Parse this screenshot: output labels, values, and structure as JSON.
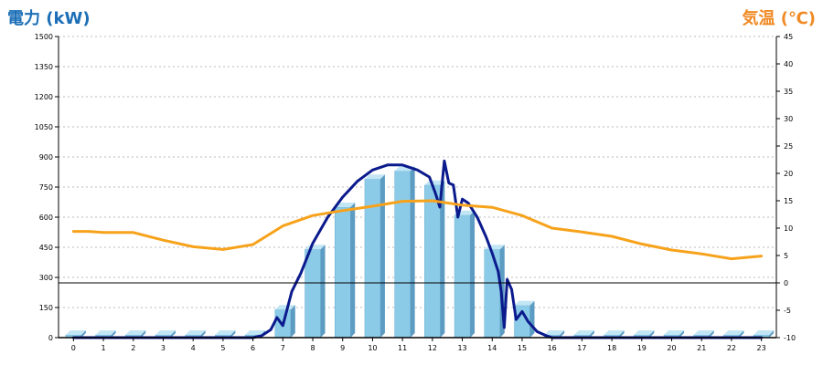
{
  "chart_data": {
    "type": "bar+line",
    "left_axis_label": "電力 (kW)",
    "right_axis_label": "気温 (℃)",
    "x_categories": [
      "0",
      "1",
      "2",
      "3",
      "4",
      "5",
      "6",
      "7",
      "8",
      "9",
      "10",
      "11",
      "12",
      "13",
      "14",
      "15",
      "16",
      "17",
      "18",
      "19",
      "20",
      "21",
      "22",
      "23"
    ],
    "left_ticks": [
      "0",
      "150",
      "300",
      "450",
      "600",
      "750",
      "900",
      "1050",
      "1200",
      "1350",
      "1500"
    ],
    "right_ticks": [
      "-10",
      "-5",
      "0",
      "5",
      "10",
      "15",
      "20",
      "25",
      "30",
      "35",
      "40",
      "45"
    ],
    "left_ylim": [
      0,
      1500
    ],
    "right_ylim": [
      -10,
      45
    ],
    "grid": "horizontal dashed",
    "series": [
      {
        "kind": "bar",
        "axis": "left",
        "color": "#8ccbe8",
        "x": [
          0,
          1,
          2,
          3,
          4,
          5,
          6,
          7,
          8,
          9,
          10,
          11,
          12,
          13,
          14,
          15,
          16,
          17,
          18,
          19,
          20,
          21,
          22,
          23
        ],
        "values": [
          0,
          0,
          0,
          0,
          0,
          0,
          0,
          140,
          440,
          650,
          790,
          830,
          760,
          610,
          440,
          160,
          0,
          0,
          0,
          0,
          0,
          0,
          0,
          0
        ]
      },
      {
        "kind": "line",
        "axis": "left",
        "color": "#0b1a8c",
        "x": [
          0,
          1,
          2,
          3,
          4,
          5,
          6,
          6.3,
          6.6,
          6.8,
          7,
          7.3,
          7.6,
          8,
          8.5,
          9,
          9.5,
          10,
          10.5,
          11,
          11.5,
          11.9,
          12.1,
          12.25,
          12.4,
          12.55,
          12.7,
          12.85,
          13,
          13.2,
          13.5,
          13.8,
          14,
          14.2,
          14.3,
          14.4,
          14.5,
          14.65,
          14.8,
          15,
          15.2,
          15.5,
          15.8,
          16,
          17,
          18,
          19,
          20,
          21,
          22,
          23
        ],
        "values": [
          0,
          0,
          0,
          0,
          0,
          0,
          0,
          10,
          40,
          100,
          60,
          230,
          320,
          470,
          600,
          700,
          780,
          835,
          860,
          860,
          835,
          800,
          720,
          650,
          880,
          770,
          760,
          600,
          690,
          670,
          600,
          500,
          420,
          330,
          230,
          50,
          290,
          240,
          90,
          130,
          80,
          30,
          10,
          0,
          0,
          0,
          0,
          0,
          0,
          0,
          0
        ]
      },
      {
        "kind": "line",
        "axis": "right",
        "color": "#f7a21b",
        "x": [
          0,
          0.5,
          1,
          2,
          3,
          4,
          5,
          6,
          7,
          8,
          9,
          10,
          11,
          12,
          13,
          14,
          15,
          16,
          17,
          18,
          19,
          20,
          21,
          22,
          23
        ],
        "values": [
          9.4,
          9.4,
          9.2,
          9.2,
          7.8,
          6.6,
          6.1,
          7,
          10.4,
          12.3,
          13.2,
          14,
          14.9,
          15,
          14.2,
          13.8,
          12.3,
          10,
          9.3,
          8.5,
          7.1,
          6,
          5.3,
          4.4,
          4.9
        ]
      }
    ]
  }
}
